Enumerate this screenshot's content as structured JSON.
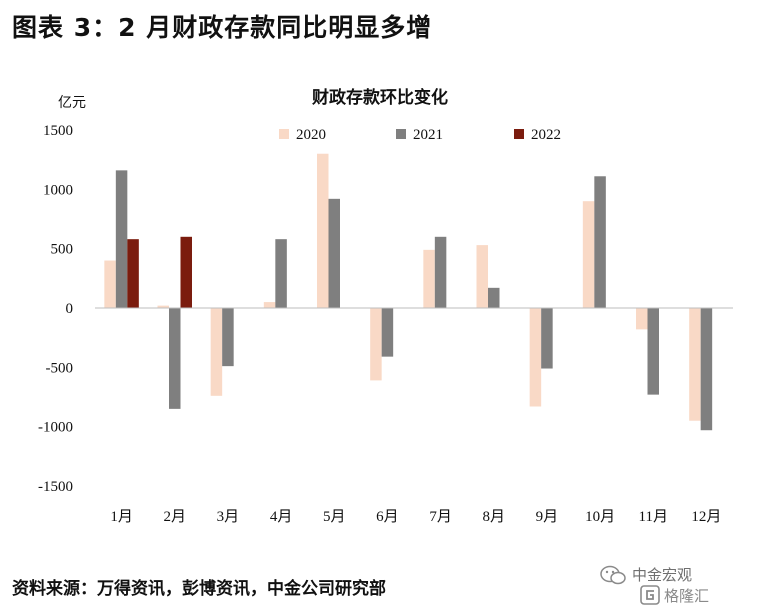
{
  "figure": {
    "title": "图表 3：2 月财政存款同比明显多增",
    "source": "资料来源：万得资讯，彭博资讯，中金公司研究部"
  },
  "watermark": {
    "line1": "中金宏观",
    "line2": "格隆汇"
  },
  "chart_data": {
    "type": "bar",
    "title": "财政存款环比变化",
    "ylabel": "亿元",
    "xlabel": "",
    "categories": [
      "1月",
      "2月",
      "3月",
      "4月",
      "5月",
      "6月",
      "7月",
      "8月",
      "9月",
      "10月",
      "11月",
      "12月"
    ],
    "ylim": [
      -1500,
      1500
    ],
    "yticks": [
      1500,
      1000,
      500,
      0,
      -500,
      -1000,
      -1500
    ],
    "legend_position": "top",
    "grid": false,
    "series": [
      {
        "name": "2020",
        "color": "#f9d9c6",
        "values": [
          400,
          20,
          -740,
          50,
          1300,
          -610,
          490,
          530,
          -830,
          900,
          -180,
          -950
        ]
      },
      {
        "name": "2021",
        "color": "#7f7f7f",
        "values": [
          1160,
          -850,
          -490,
          580,
          920,
          -410,
          600,
          170,
          -510,
          1110,
          -730,
          -1030
        ]
      },
      {
        "name": "2022",
        "color": "#7b1c0e",
        "values": [
          580,
          600,
          null,
          null,
          null,
          null,
          null,
          null,
          null,
          null,
          null,
          null
        ]
      }
    ]
  }
}
